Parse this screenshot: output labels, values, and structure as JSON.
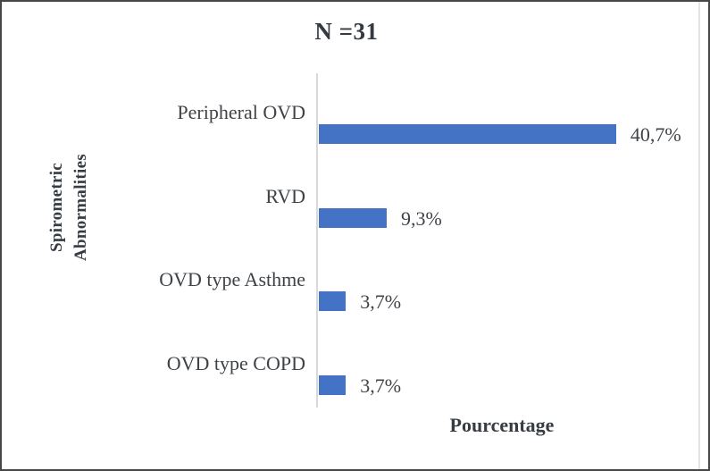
{
  "window": {
    "background": "#ffffff",
    "border_color": "#474747"
  },
  "chart_data": {
    "type": "bar",
    "orientation": "horizontal",
    "title": "N =31",
    "xlabel": "Pourcentage",
    "ylabel": "Spirometric Abnormalities",
    "ylabel_lines": [
      "Spirometric",
      "Abnormalities"
    ],
    "categories": [
      "Peripheral OVD",
      "RVD",
      "OVD type Asthme",
      "OVD type COPD"
    ],
    "values": [
      40.7,
      9.3,
      3.7,
      3.7
    ],
    "value_labels": [
      "40,7%",
      "9,3%",
      "3,7%",
      "3,7%"
    ],
    "xlim": [
      0,
      45
    ],
    "grid": false,
    "legend": false,
    "bar_color": "#4472C4",
    "axis_line_color": "#d9d9d9",
    "text_color": "#3f4347"
  }
}
